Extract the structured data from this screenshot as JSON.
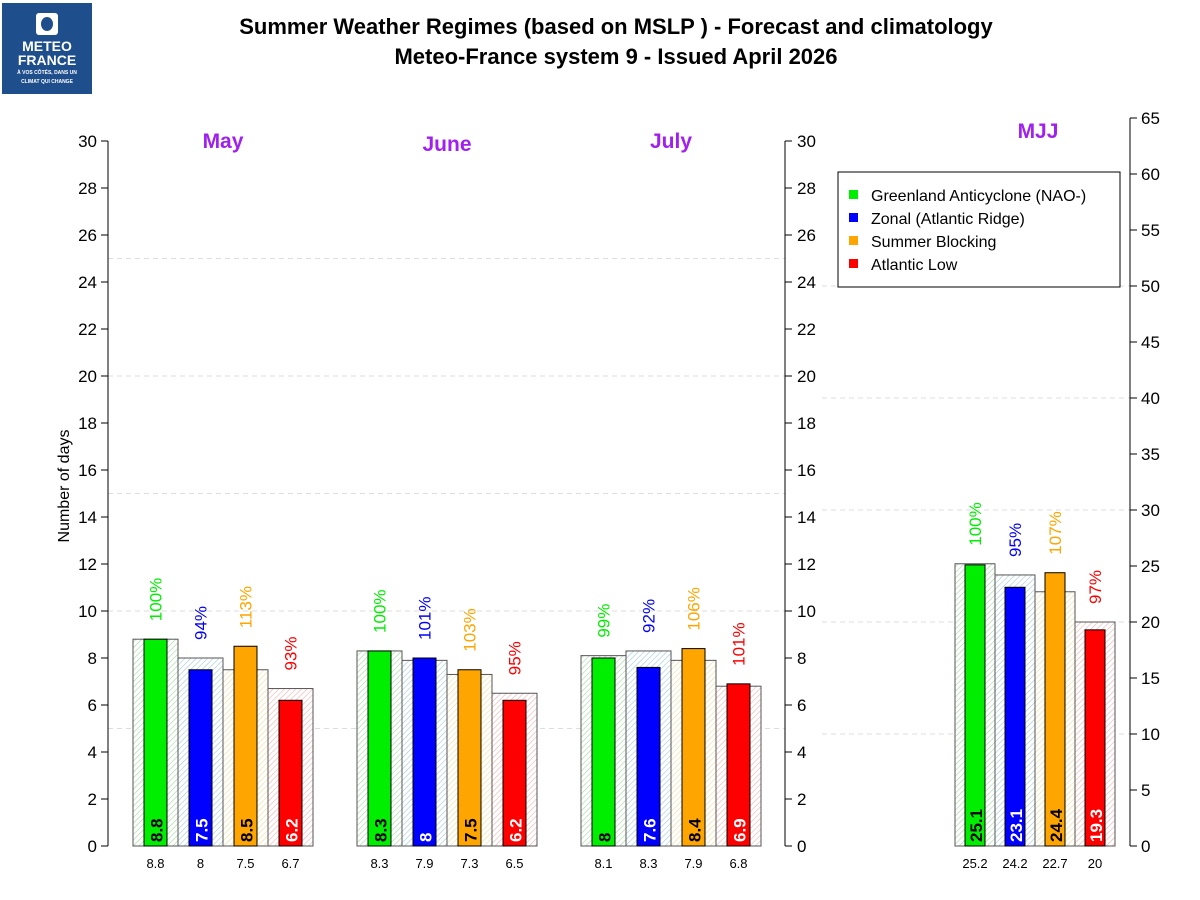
{
  "logo": {
    "line1": "METEO",
    "line2": "FRANCE",
    "tagline1": "À VOS CÔTÉS, DANS UN",
    "tagline2": "CLIMAT QUI CHANGE"
  },
  "chart_data": {
    "type": "bar",
    "title": "Summer Weather Regimes (based on MSLP )  -  Forecast and climatology",
    "subtitle": "Meteo-France system 9   -   Issued April 2026",
    "ylabel": "Number of days",
    "ylim_monthly": [
      0,
      30
    ],
    "yticks_monthly": [
      0,
      2,
      4,
      6,
      8,
      10,
      12,
      14,
      16,
      18,
      20,
      22,
      24,
      26,
      28,
      30
    ],
    "ylim_season": [
      0,
      65
    ],
    "yticks_season": [
      0,
      5,
      10,
      15,
      20,
      25,
      30,
      35,
      40,
      45,
      50,
      55,
      60,
      65
    ],
    "grid": true,
    "legend_position": "top-right",
    "series": [
      {
        "name": "Greenland Anticyclone (NAO-)",
        "color": "#00ee00",
        "hatch": "#9fd89f",
        "text_color": "#000000"
      },
      {
        "name": "Zonal (Atlantic Ridge)",
        "color": "#0000ff",
        "hatch": "#9fc8dc",
        "text_color": "#ffffff"
      },
      {
        "name": "Summer Blocking",
        "color": "#ffa500",
        "hatch": "#f0dc9a",
        "text_color": "#000000"
      },
      {
        "name": "Atlantic Low",
        "color": "#ff0000",
        "hatch": "#f0b0b0",
        "text_color": "#ffffff"
      }
    ],
    "pct_colors": [
      "#00ee00",
      "#0000ff",
      "#ffa500",
      "#ff0000"
    ],
    "groups": [
      {
        "label": "May",
        "forecast": [
          8.8,
          7.5,
          8.5,
          6.2
        ],
        "forecast_labels": [
          "8.8",
          "7.5",
          "8.5",
          "6.2"
        ],
        "climatology": [
          8.8,
          8,
          7.5,
          6.7
        ],
        "climatology_labels": [
          "8.8",
          "8",
          "7.5",
          "6.7"
        ],
        "percent": [
          "100%",
          "94%",
          "113%",
          "93%"
        ]
      },
      {
        "label": "June",
        "forecast": [
          8.3,
          8,
          7.5,
          6.2
        ],
        "forecast_labels": [
          "8.3",
          "8",
          "7.5",
          "6.2"
        ],
        "climatology": [
          8.3,
          7.9,
          7.3,
          6.5
        ],
        "climatology_labels": [
          "8.3",
          "7.9",
          "7.3",
          "6.5"
        ],
        "percent": [
          "100%",
          "101%",
          "103%",
          "95%"
        ]
      },
      {
        "label": "July",
        "forecast": [
          8,
          7.6,
          8.4,
          6.9
        ],
        "forecast_labels": [
          "8",
          "7.6",
          "8.4",
          "6.9"
        ],
        "climatology": [
          8.1,
          8.3,
          7.9,
          6.8
        ],
        "climatology_labels": [
          "8.1",
          "8.3",
          "7.9",
          "6.8"
        ],
        "percent": [
          "99%",
          "92%",
          "106%",
          "101%"
        ]
      },
      {
        "label": "MJJ",
        "forecast": [
          25.1,
          23.1,
          24.4,
          19.3
        ],
        "forecast_labels": [
          "25.1",
          "23.1",
          "24.4",
          "19.3"
        ],
        "climatology": [
          25.2,
          24.2,
          22.7,
          20
        ],
        "climatology_labels": [
          "25.2",
          "24.2",
          "22.7",
          "20"
        ],
        "percent": [
          "100%",
          "95%",
          "107%",
          "97%"
        ]
      }
    ],
    "group_label_color": "#a020f0"
  }
}
